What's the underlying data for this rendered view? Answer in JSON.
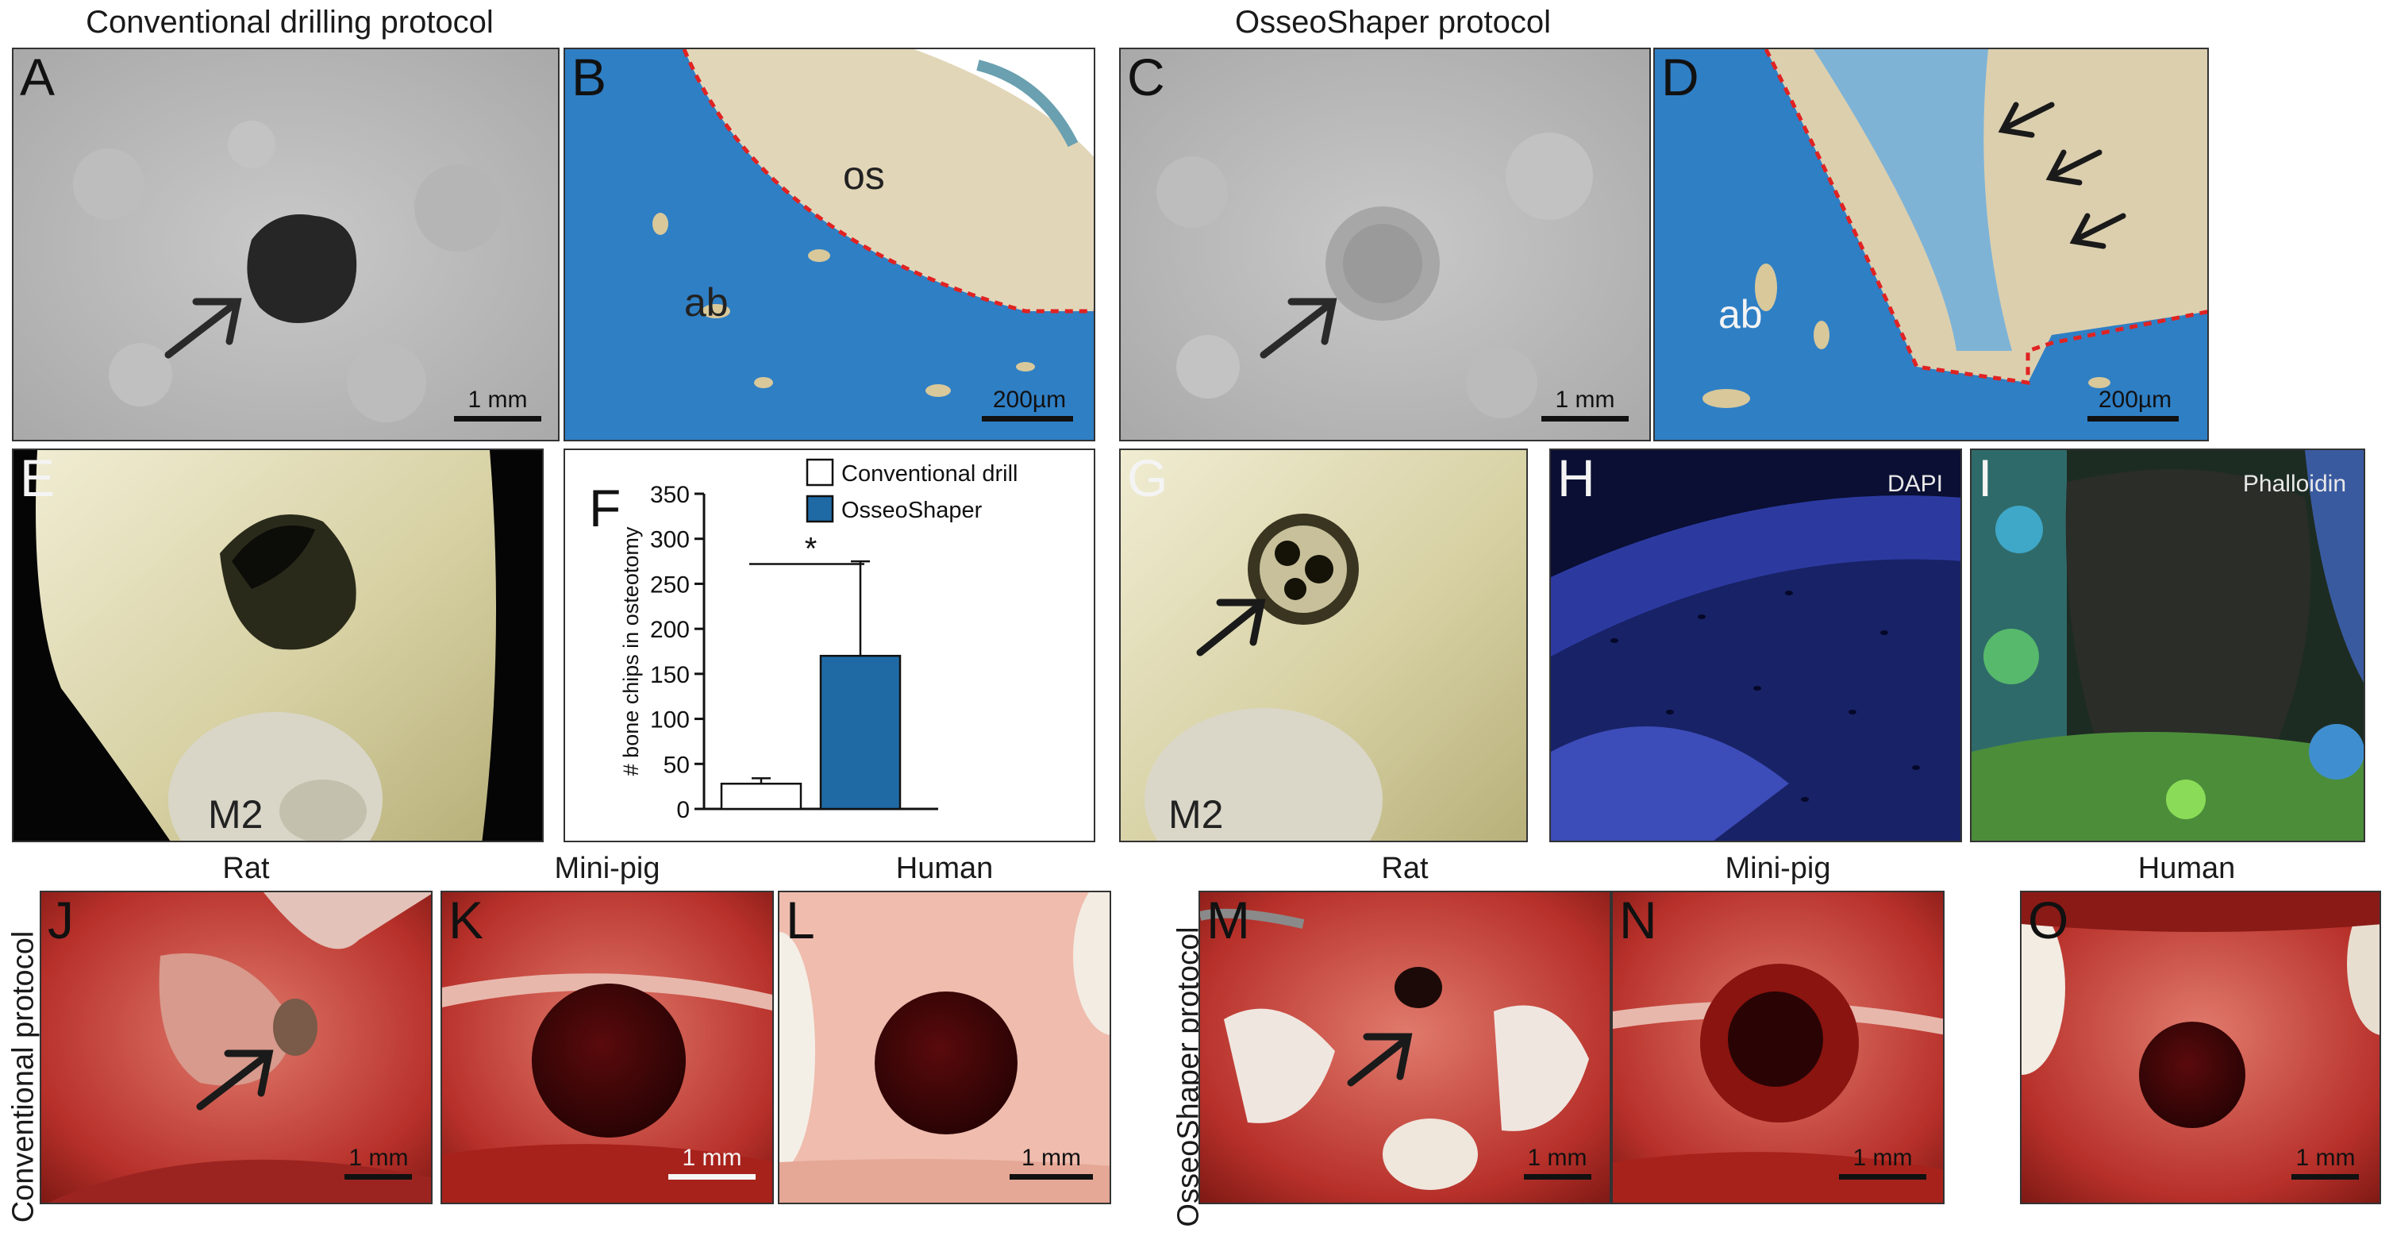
{
  "sections": {
    "conventional_title": "Conventional drilling protocol",
    "osseoshaper_title": "OsseoShaper protocol",
    "row3_left_label": "Conventional protocol",
    "row3_right_label": "OsseoShaper protocol"
  },
  "panels": {
    "A": {
      "label": "A",
      "scale": "1 mm"
    },
    "B": {
      "label": "B",
      "scale": "200µm",
      "tag_os": "os",
      "tag_ab": "ab"
    },
    "C": {
      "label": "C",
      "scale": "1 mm"
    },
    "D": {
      "label": "D",
      "scale": "200µm",
      "tag_ab": "ab"
    },
    "E": {
      "label": "E",
      "tag": "M2"
    },
    "F": {
      "label": "F"
    },
    "G": {
      "label": "G",
      "tag": "M2"
    },
    "H": {
      "label": "H",
      "stain": "DAPI"
    },
    "I": {
      "label": "I",
      "stain": "Phalloidin"
    },
    "J": {
      "label": "J",
      "species": "Rat",
      "scale": "1 mm"
    },
    "K": {
      "label": "K",
      "species": "Mini-pig",
      "scale": "1 mm"
    },
    "L": {
      "label": "L",
      "species": "Human",
      "scale": "1 mm"
    },
    "M": {
      "label": "M",
      "species": "Rat",
      "scale": "1 mm"
    },
    "N": {
      "label": "N",
      "species": "Mini-pig",
      "scale": "1 mm"
    },
    "O": {
      "label": "O",
      "species": "Human",
      "scale": "1 mm"
    }
  },
  "chart_data": {
    "type": "bar",
    "categories": [
      "Conventional drill",
      "OsseoShaper"
    ],
    "values": [
      28,
      170
    ],
    "errors": [
      6,
      105
    ],
    "ylabel": "# bone chips in osteotomy",
    "ylim": [
      0,
      350
    ],
    "yticks": [
      0,
      50,
      100,
      150,
      200,
      250,
      300,
      350
    ],
    "significance": "*",
    "legend": [
      {
        "name": "Conventional drill",
        "color": "#ffffff"
      },
      {
        "name": "OsseoShaper",
        "color": "#1f6aa5"
      }
    ],
    "legend_position": "top-right",
    "colors": [
      "#ffffff",
      "#1f6aa5"
    ]
  }
}
